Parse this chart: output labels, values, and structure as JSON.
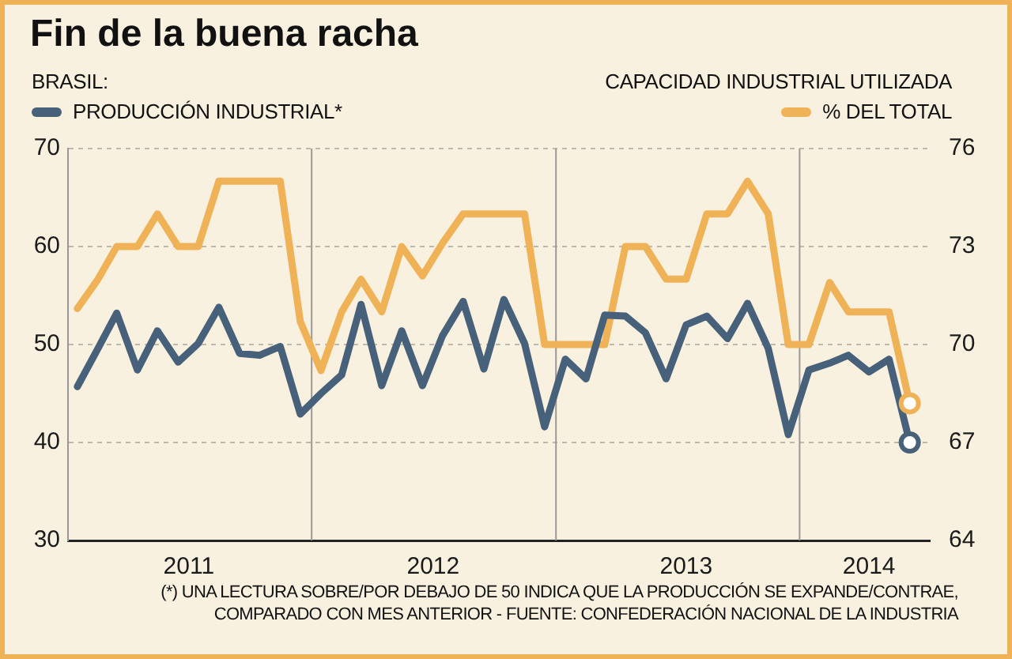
{
  "chart_data": {
    "type": "line",
    "title": "Fin de la buena racha",
    "subtitle": "BRASIL:",
    "y2label": "CAPACIDAD INDUSTRIAL UTILIZADA",
    "annotations": [
      "(*) UNA LECTURA SOBRE/POR DEBAJO DE 50 INDICA QUE LA PRODUCCIÓN SE EXPANDE/CONTRAE, COMPARADO CON MES ANTERIOR - FUENTE: CONFEDERACIÓN NACIONAL DE LA INDUSTRIA"
    ],
    "x": [
      "2011-01-15",
      "2011-02-15",
      "2011-03-15",
      "2011-04-15",
      "2011-05-15",
      "2011-06-15",
      "2011-07-15",
      "2011-08-15",
      "2011-09-15",
      "2011-10-15",
      "2011-11-15",
      "2011-12-15",
      "2012-01-15",
      "2012-02-15",
      "2012-03-15",
      "2012-04-15",
      "2012-05-15",
      "2012-06-15",
      "2012-07-15",
      "2012-08-15",
      "2012-09-15",
      "2012-10-15",
      "2012-11-15",
      "2012-12-15",
      "2013-01-15",
      "2013-02-15",
      "2013-03-15",
      "2013-04-15",
      "2013-05-15",
      "2013-06-15",
      "2013-07-15",
      "2013-08-15",
      "2013-09-15",
      "2013-10-15",
      "2013-11-15",
      "2013-12-15",
      "2014-01-15",
      "2014-02-15",
      "2014-03-15",
      "2014-04-15",
      "2014-05-15",
      "2014-06-15"
    ],
    "series": [
      {
        "name": "PRODUCCIÓN INDUSTRIAL*",
        "color": "#48617a",
        "values": [
          45.7,
          49.6,
          53.2,
          47.4,
          51.4,
          48.2,
          50.1,
          53.8,
          49.1,
          48.9,
          49.8,
          42.9,
          45.0,
          46.9,
          54.1,
          45.8,
          51.4,
          45.8,
          50.9,
          54.4,
          47.5,
          54.6,
          50.1,
          41.6,
          48.5,
          46.5,
          53.0,
          52.9,
          51.2,
          46.5,
          52.0,
          52.9,
          50.6,
          54.2,
          49.6,
          40.8,
          47.4,
          48.1,
          48.9,
          47.2,
          48.5,
          40.0
        ]
      },
      {
        "name": "% DEL TOTAL",
        "color": "#f0b257",
        "axis": "y2",
        "values": [
          71.1,
          72.0,
          73.0,
          73.0,
          74.0,
          73.0,
          73.0,
          75.0,
          75.0,
          75.0,
          75.0,
          70.7,
          69.2,
          71.0,
          72.0,
          71.0,
          73.0,
          72.1,
          73.1,
          74.0,
          74.0,
          74.0,
          74.0,
          70.0,
          70.0,
          70.0,
          70.0,
          73.0,
          73.0,
          72.0,
          72.0,
          74.0,
          74.0,
          75.0,
          74.0,
          70.0,
          70.0,
          71.9,
          71.0,
          71.0,
          71.0,
          68.2
        ]
      },
      {
        "type": "scatter",
        "color": "#48617a",
        "marker": "circle",
        "x": [
          "2014-06-15"
        ],
        "values": [
          40.0
        ]
      },
      {
        "type": "scatter",
        "color": "#f0b257",
        "marker": "circle",
        "axis": "y2",
        "x": [
          "2014-06-15"
        ],
        "values": [
          68.2
        ]
      }
    ],
    "xlim": [
      "2011-01-01",
      "2014-07-15"
    ],
    "xticks": [
      {
        "value": "2011-07-01",
        "label": "2011"
      },
      {
        "value": "2012-07-01",
        "label": "2012"
      },
      {
        "value": "2013-07-15",
        "label": "2013"
      },
      {
        "value": "2014-04-15",
        "label": "2014"
      }
    ],
    "ylim": [
      30,
      70
    ],
    "yticks": [
      30,
      40,
      50,
      60,
      70
    ],
    "y2lim": [
      64,
      76
    ],
    "y2ticks": [
      64,
      67,
      70,
      73,
      76
    ],
    "ref_lines": [
      {
        "axis": "x",
        "value": "2012-01-01",
        "color": "#999999"
      },
      {
        "axis": "x",
        "value": "2013-01-01",
        "color": "#999999"
      },
      {
        "axis": "x",
        "value": "2014-01-01",
        "color": "#999999"
      }
    ],
    "grid": "y",
    "legend": "top"
  }
}
